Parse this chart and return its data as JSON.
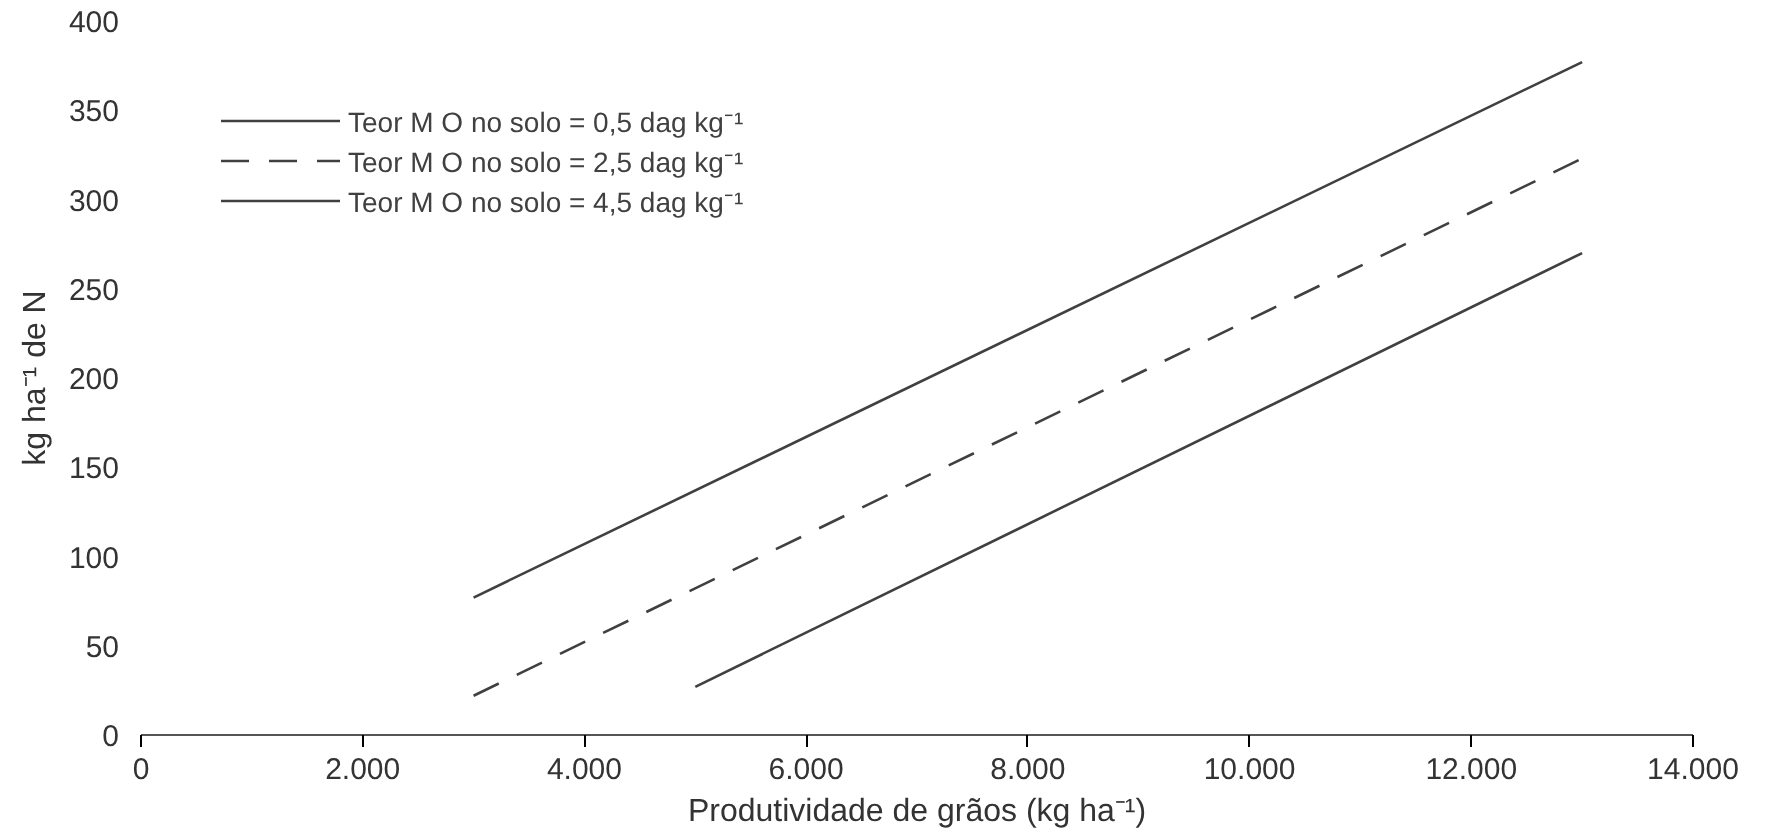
{
  "chart_data": {
    "type": "line",
    "xlabel": "Produtividade de grãos (kg ha⁻¹)",
    "ylabel": "kg ha⁻¹ de N",
    "xlim": [
      0,
      14000
    ],
    "ylim": [
      0,
      400
    ],
    "xticks": [
      {
        "value": 0,
        "label": "0"
      },
      {
        "value": 2000,
        "label": "2.000"
      },
      {
        "value": 4000,
        "label": "4.000"
      },
      {
        "value": 6000,
        "label": "6.000"
      },
      {
        "value": 8000,
        "label": "8.000"
      },
      {
        "value": 10000,
        "label": "10.000"
      },
      {
        "value": 12000,
        "label": "12.000"
      },
      {
        "value": 14000,
        "label": "14.000"
      }
    ],
    "yticks": [
      0,
      50,
      100,
      150,
      200,
      250,
      300,
      350,
      400
    ],
    "grid": false,
    "legend": "top left",
    "marker": "none",
    "series": [
      {
        "name": "Teor M O no solo = 0,5 dag kg⁻¹",
        "color": "#404040",
        "x": [
          3000,
          13000
        ],
        "values": [
          77,
          377
        ],
        "line_style": "solid"
      },
      {
        "name": "Teor M O no solo = 2,5 dag kg⁻¹",
        "color": "#404040",
        "x": [
          3000,
          13000
        ],
        "values": [
          22,
          323
        ],
        "line_style": "dashed"
      },
      {
        "name": "Teor M O no solo = 4,5 dag kg⁻¹",
        "color": "#404040",
        "x": [
          5000,
          13000
        ],
        "values": [
          27,
          270
        ],
        "line_style": "solid"
      }
    ]
  }
}
